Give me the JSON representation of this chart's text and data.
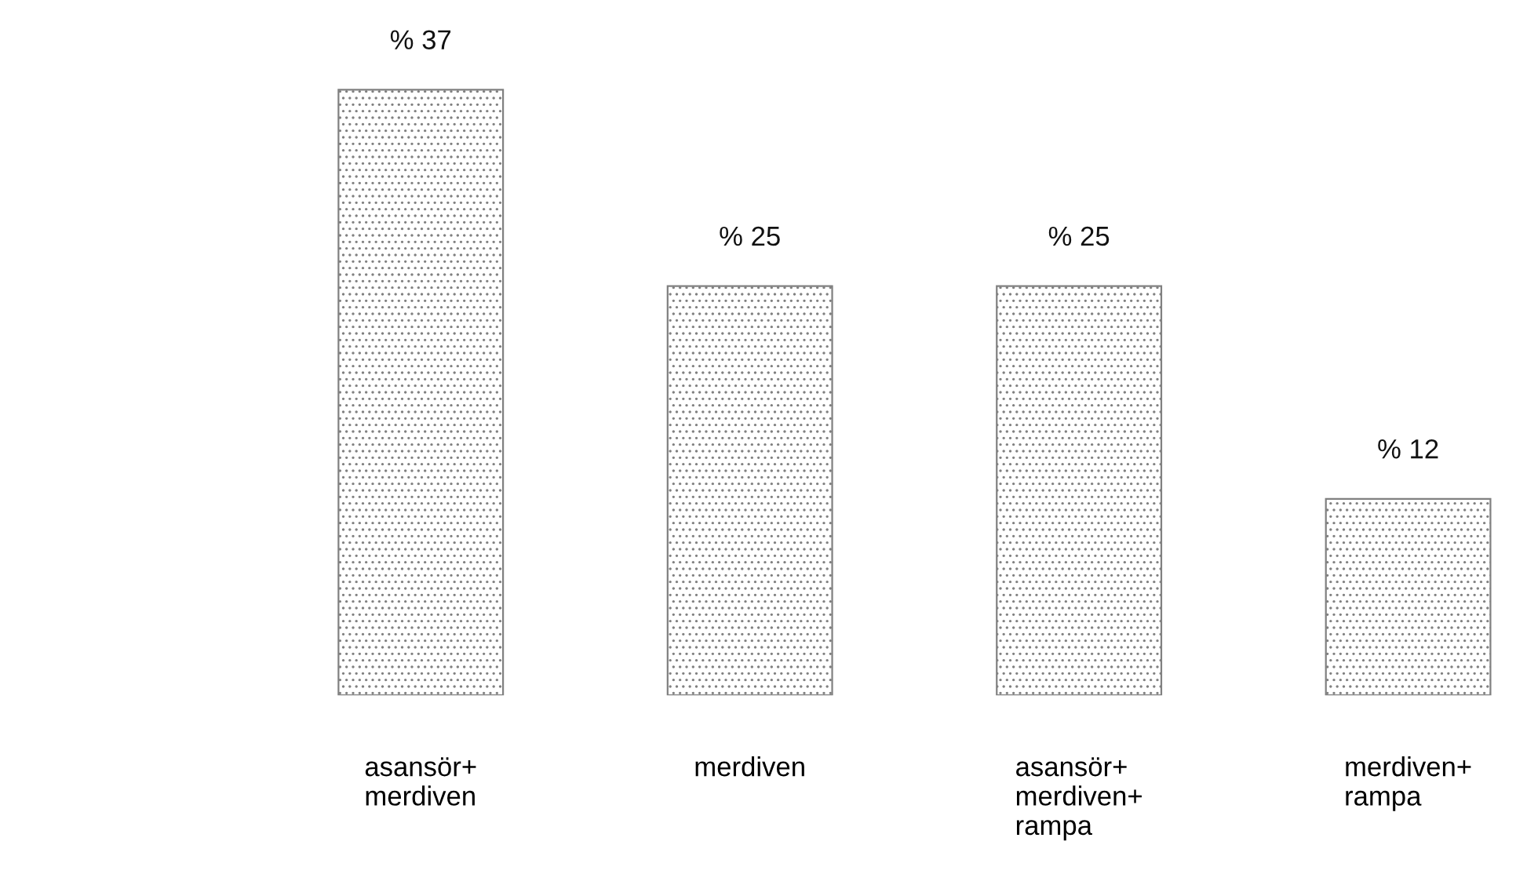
{
  "chart_data": {
    "type": "bar",
    "categories": [
      "asansör+\nmerdiven",
      "merdiven",
      "asansör+\nmerdiven+\nrampa",
      "merdiven+\nrampa"
    ],
    "values": [
      37,
      25,
      25,
      12
    ],
    "value_labels": [
      "% 37",
      "% 25",
      "% 25",
      "% 12"
    ],
    "color": "#808080",
    "grid": false,
    "legend": false
  }
}
